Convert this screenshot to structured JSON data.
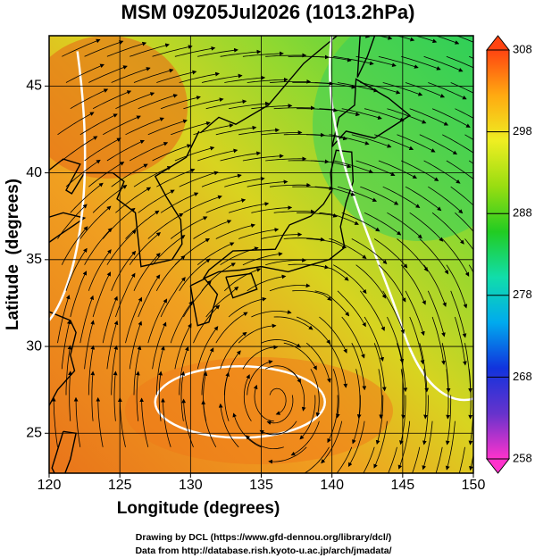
{
  "chart_data": {
    "type": "map",
    "title": "MSM 09Z05Jul2026 (1013.2hPa)",
    "x_label": "Longitude (degrees)",
    "y_label": "Latitude  (degrees)",
    "xlim": [
      120,
      150
    ],
    "ylim": [
      22.7,
      47.9
    ],
    "xticks": [
      120,
      125,
      130,
      135,
      140,
      145,
      150
    ],
    "yticks": [
      25,
      30,
      35,
      40,
      45
    ],
    "grid": true,
    "colorbar": {
      "lim": [
        258,
        308
      ],
      "ticks": [
        258,
        268,
        278,
        288,
        298,
        308
      ],
      "colors": [
        "#ff33cc",
        "#6633cc",
        "#1133dd",
        "#00aaee",
        "#11ddaa",
        "#22cc22",
        "#99dd11",
        "#eeee22",
        "#ffaa11",
        "#ff4411"
      ]
    }
  },
  "footer": [
    "Drawing by DCL (https://www.gfd-dennou.org/library/dcl/)",
    "Data from http://database.rish.kyoto-u.ac.jp/arch/jmadata/"
  ]
}
